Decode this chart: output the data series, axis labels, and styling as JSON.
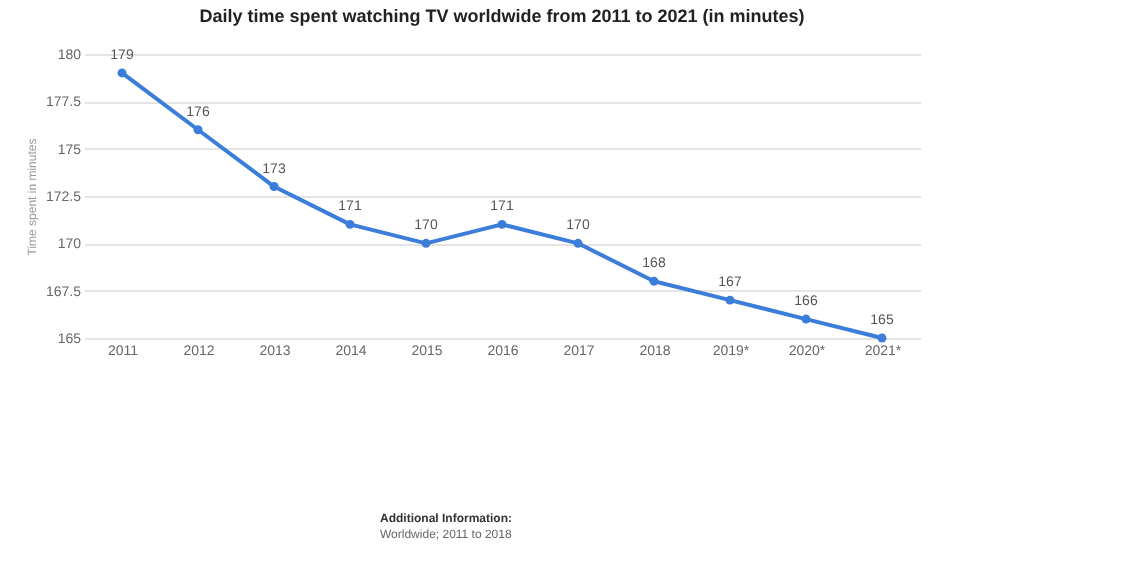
{
  "chart_data": {
    "type": "line",
    "title": "Daily time spent watching TV worldwide from 2011 to 2021 (in minutes)",
    "ylabel": "Time spent in minutes",
    "categories": [
      "2011",
      "2012",
      "2013",
      "2014",
      "2015",
      "2016",
      "2017",
      "2018",
      "2019*",
      "2020*",
      "2021*"
    ],
    "series": [
      {
        "color": "#3b7dd8",
        "values": [
          179,
          176,
          173,
          171,
          170,
          171,
          170,
          168,
          167,
          166,
          165
        ]
      }
    ],
    "ylim": [
      165,
      180
    ],
    "yticks": [
      165,
      167.5,
      170,
      172.5,
      175,
      177.5,
      180
    ],
    "grid": "y",
    "marker": "circle",
    "data_labels": true,
    "annotations": [
      "Additional Information:",
      "Worldwide; 2011 to 2018"
    ]
  }
}
